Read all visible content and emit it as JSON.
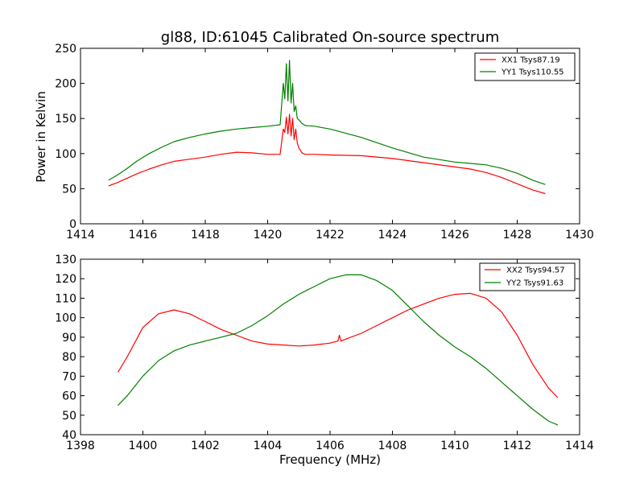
{
  "chart_data": [
    {
      "type": "line",
      "title": "gl88, ID:61045 Calibrated On-source spectrum",
      "xlabel": "",
      "ylabel": "Power in Kelvin",
      "xlim": [
        1414,
        1430
      ],
      "ylim": [
        0,
        250
      ],
      "xticks": [
        "1414",
        "1416",
        "1418",
        "1420",
        "1422",
        "1424",
        "1426",
        "1428",
        "1430"
      ],
      "yticks": [
        "0",
        "50",
        "100",
        "150",
        "200",
        "250"
      ],
      "legend_position": "top-right",
      "series": [
        {
          "name": "XX1 Tsys87.19",
          "color": "#ff0000",
          "x": [
            1414.9,
            1415.2,
            1415.5,
            1415.8,
            1416.2,
            1416.6,
            1417.0,
            1417.5,
            1418.0,
            1418.5,
            1419.0,
            1419.5,
            1420.0,
            1420.4,
            1420.5,
            1420.55,
            1420.6,
            1420.65,
            1420.7,
            1420.75,
            1420.8,
            1420.85,
            1420.9,
            1420.95,
            1421.0,
            1421.1,
            1421.2,
            1421.5,
            1422.0,
            1423.0,
            1424.0,
            1425.0,
            1426.0,
            1426.5,
            1427.0,
            1427.5,
            1428.0,
            1428.5,
            1428.9
          ],
          "y": [
            54,
            59,
            65,
            71,
            78,
            84,
            89,
            92,
            95,
            99,
            102,
            101,
            99,
            99,
            135,
            130,
            152,
            128,
            156,
            125,
            150,
            120,
            135,
            115,
            108,
            101,
            99,
            99,
            98,
            97,
            93,
            87,
            81,
            78,
            73,
            66,
            57,
            48,
            43
          ]
        },
        {
          "name": "YY1 Tsys110.55",
          "color": "#008000",
          "x": [
            1414.9,
            1415.2,
            1415.5,
            1415.8,
            1416.2,
            1416.6,
            1417.0,
            1417.5,
            1418.0,
            1418.5,
            1419.0,
            1419.5,
            1420.0,
            1420.4,
            1420.5,
            1420.55,
            1420.6,
            1420.65,
            1420.7,
            1420.75,
            1420.8,
            1420.85,
            1420.9,
            1420.95,
            1421.0,
            1421.1,
            1421.2,
            1421.5,
            1422.0,
            1423.0,
            1424.0,
            1425.0,
            1426.0,
            1426.5,
            1427.0,
            1427.5,
            1428.0,
            1428.5,
            1428.9
          ],
          "y": [
            62,
            70,
            79,
            89,
            100,
            109,
            117,
            123,
            128,
            132,
            135,
            137,
            139,
            141,
            200,
            178,
            228,
            175,
            233,
            172,
            200,
            160,
            168,
            150,
            148,
            143,
            140,
            139,
            135,
            123,
            108,
            95,
            88,
            86,
            84,
            79,
            72,
            62,
            56
          ]
        }
      ]
    },
    {
      "type": "line",
      "title": "",
      "xlabel": "Frequency (MHz)",
      "ylabel": "",
      "xlim": [
        1398,
        1414
      ],
      "ylim": [
        40,
        130
      ],
      "xticks": [
        "1398",
        "1400",
        "1402",
        "1404",
        "1406",
        "1408",
        "1410",
        "1412",
        "1414"
      ],
      "yticks": [
        "40",
        "50",
        "60",
        "70",
        "80",
        "90",
        "100",
        "110",
        "120",
        "130"
      ],
      "legend_position": "top-right",
      "series": [
        {
          "name": "XX2 Tsys94.57",
          "color": "#ff0000",
          "x": [
            1399.2,
            1399.5,
            1400.0,
            1400.5,
            1401.0,
            1401.5,
            1402.0,
            1402.5,
            1403.0,
            1403.5,
            1404.0,
            1404.5,
            1405.0,
            1405.5,
            1406.0,
            1406.25,
            1406.3,
            1406.35,
            1406.5,
            1407.0,
            1407.5,
            1408.0,
            1408.5,
            1409.0,
            1409.5,
            1410.0,
            1410.5,
            1411.0,
            1411.5,
            1412.0,
            1412.5,
            1413.0,
            1413.3
          ],
          "y": [
            72,
            80,
            95,
            102,
            104,
            102,
            98,
            94,
            91,
            88,
            86.5,
            86,
            85.5,
            86,
            87,
            88,
            91,
            88,
            89,
            92,
            96,
            100,
            104,
            107,
            110,
            112,
            112.5,
            110,
            103,
            91,
            76,
            64,
            59
          ]
        },
        {
          "name": "YY2 Tsys91.63",
          "color": "#008000",
          "x": [
            1399.2,
            1399.5,
            1400.0,
            1400.5,
            1401.0,
            1401.5,
            1402.0,
            1402.5,
            1403.0,
            1403.5,
            1404.0,
            1404.5,
            1405.0,
            1405.5,
            1406.0,
            1406.5,
            1407.0,
            1407.5,
            1408.0,
            1408.5,
            1409.0,
            1409.5,
            1410.0,
            1410.5,
            1411.0,
            1411.5,
            1412.0,
            1412.5,
            1413.0,
            1413.3
          ],
          "y": [
            55,
            60,
            70,
            78,
            83,
            86,
            88,
            90,
            92,
            96,
            101,
            107,
            112,
            116,
            120,
            122,
            122,
            119,
            114,
            106,
            98,
            91,
            85,
            80,
            74,
            67,
            60,
            53,
            47,
            45
          ]
        }
      ]
    }
  ]
}
